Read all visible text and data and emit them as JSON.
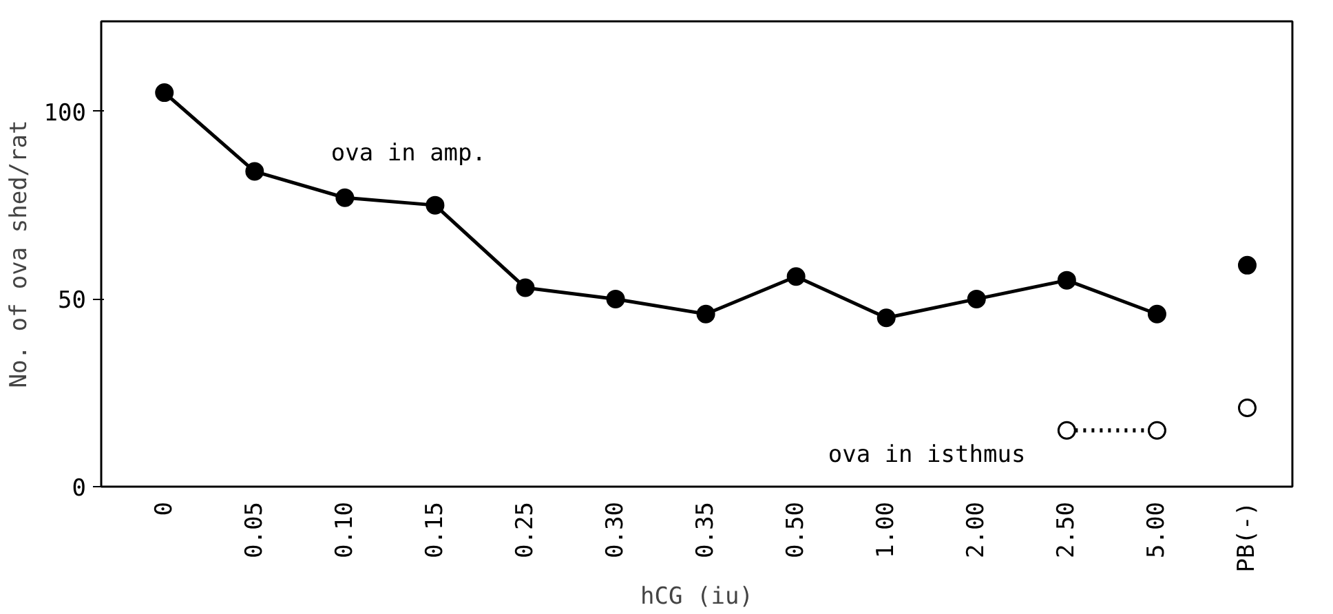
{
  "chart_data": {
    "type": "line",
    "xlabel": "hCG (iu)",
    "ylabel": "No. of ova shed/rat",
    "categories": [
      "0",
      "0.05",
      "0.10",
      "0.15",
      "0.25",
      "0.30",
      "0.35",
      "0.50",
      "1.00",
      "2.00",
      "2.50",
      "5.00",
      "PB(-)"
    ],
    "ylim": [
      0,
      124
    ],
    "yticks": [
      0,
      50,
      100
    ],
    "grid": false,
    "series": [
      {
        "name": "ova in amp.",
        "color": "#000000",
        "marker": "circle",
        "line_style": "solid",
        "values": [
          105,
          84,
          77,
          75,
          53,
          50,
          46,
          56,
          45,
          50,
          55,
          46,
          null
        ]
      },
      {
        "name": "ova in isthmus",
        "color": "#000000",
        "marker": "circle_open",
        "line_style": "dotted",
        "values": [
          null,
          null,
          null,
          null,
          null,
          null,
          null,
          null,
          null,
          null,
          15,
          15,
          null
        ]
      },
      {
        "type": "scatter",
        "color": "#000000",
        "marker": "circle",
        "x": [
          "PB(-)"
        ],
        "values": [
          59
        ]
      },
      {
        "type": "scatter",
        "color": "#000000",
        "marker": "circle_open",
        "x": [
          "PB(-)"
        ],
        "values": [
          21
        ]
      }
    ]
  }
}
